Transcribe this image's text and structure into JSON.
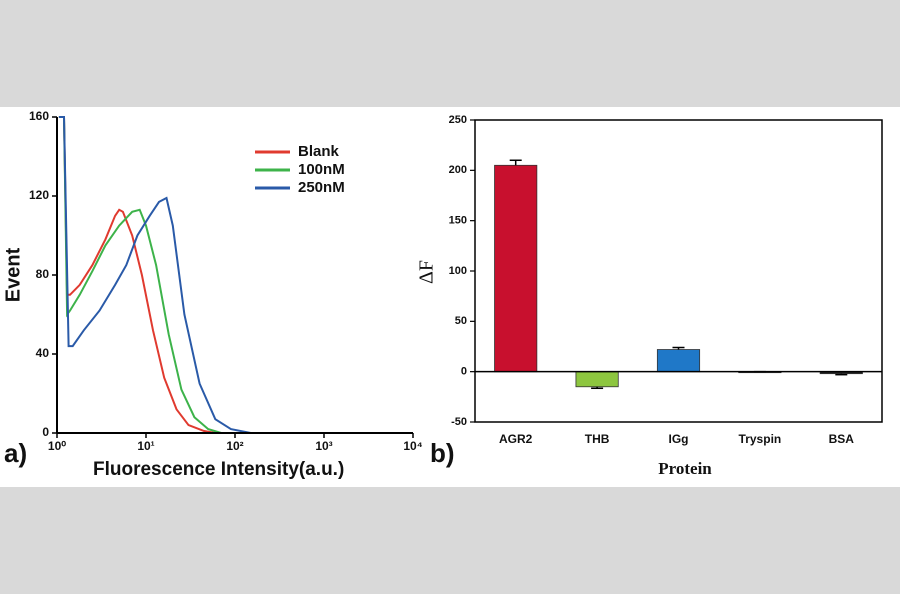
{
  "chart_data": [
    {
      "type": "line",
      "log_x": true,
      "panel_label": "a)",
      "ylabel": "Event",
      "xlabel": "Fluorescence Intensity(a.u.)",
      "xlim": [
        1,
        10000
      ],
      "xticks": [
        {
          "value": 1,
          "label": "10⁰"
        },
        {
          "value": 10,
          "label": "10¹"
        },
        {
          "value": 100,
          "label": "10²"
        },
        {
          "value": 1000,
          "label": "10³"
        },
        {
          "value": 10000,
          "label": "10⁴"
        }
      ],
      "ylim": [
        0,
        160
      ],
      "yticks": [
        0,
        40,
        80,
        120,
        160
      ],
      "series": [
        {
          "name": "Blank",
          "color": "#e03a2f",
          "x": [
            1.05,
            1.2,
            1.3,
            1.4,
            1.8,
            2.5,
            3.5,
            4.5,
            5,
            5.5,
            7,
            9,
            12,
            16,
            22,
            30,
            45,
            60
          ],
          "values": [
            160,
            160,
            70,
            70,
            75,
            85,
            98,
            110,
            113,
            112,
            100,
            80,
            52,
            28,
            12,
            4,
            1,
            0
          ]
        },
        {
          "name": "100nM",
          "color": "#3db34a",
          "x": [
            1.05,
            1.2,
            1.3,
            1.4,
            1.8,
            2.5,
            3.5,
            5,
            7,
            8.5,
            10,
            13,
            18,
            25,
            35,
            50,
            70
          ],
          "values": [
            160,
            160,
            60,
            62,
            70,
            82,
            95,
            105,
            112,
            113,
            105,
            85,
            50,
            22,
            8,
            2,
            0
          ]
        },
        {
          "name": "250nM",
          "color": "#2a5aa8",
          "x": [
            1.05,
            1.2,
            1.35,
            1.5,
            2,
            3,
            4.5,
            6,
            8,
            11,
            14,
            17,
            20,
            27,
            40,
            60,
            90,
            150
          ],
          "values": [
            160,
            160,
            44,
            44,
            52,
            62,
            75,
            85,
            100,
            110,
            117,
            119,
            105,
            60,
            25,
            7,
            2,
            0
          ]
        }
      ]
    },
    {
      "type": "bar",
      "panel_label": "b)",
      "ylabel": "ΔF",
      "xlabel": "Protein",
      "categories": [
        "AGR2",
        "THB",
        "IGg",
        "Tryspin",
        "BSA"
      ],
      "values": [
        205,
        -15,
        22,
        0,
        -2
      ],
      "errors": [
        5,
        1.5,
        2,
        0,
        1
      ],
      "colors": [
        "#c8102e",
        "#8dc63f",
        "#1f78c8",
        "#222222",
        "#222222"
      ],
      "ylim": [
        -50,
        250
      ],
      "yticks": [
        -50,
        0,
        50,
        100,
        150,
        200,
        250
      ]
    }
  ]
}
